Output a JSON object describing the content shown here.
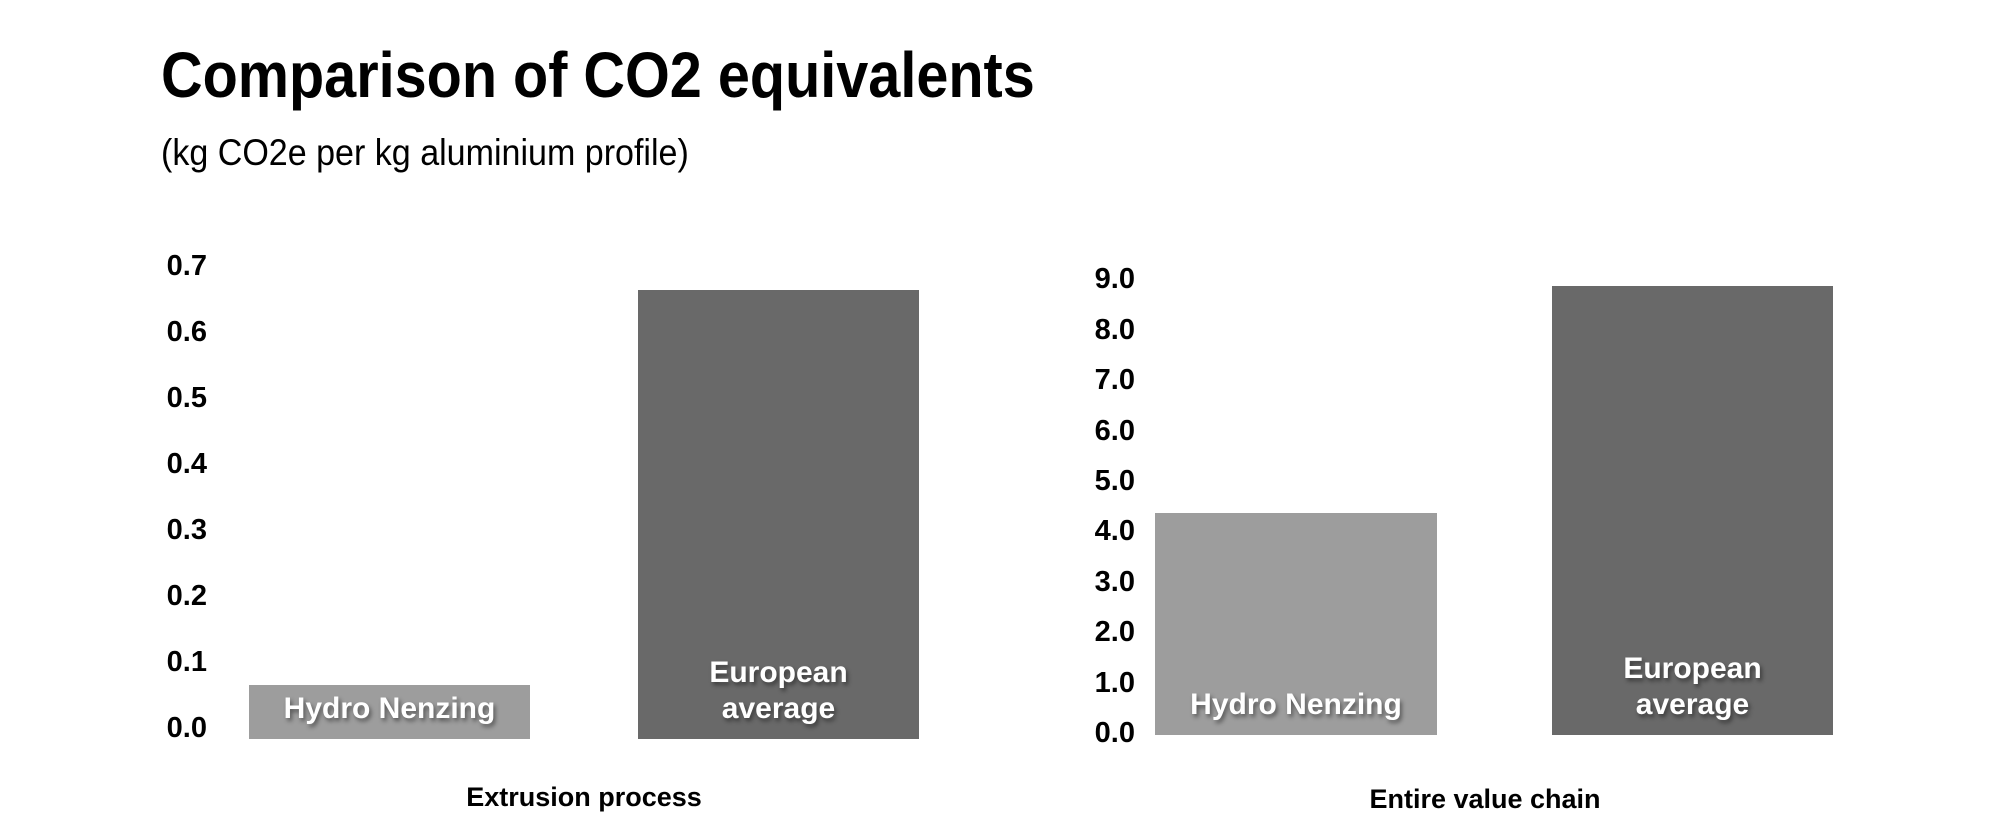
{
  "header": {
    "title": "Comparison of CO2 equivalents",
    "subtitle": "(kg CO2e per kg aluminium profile)"
  },
  "colors": {
    "background": "#ffffff",
    "text": "#000000",
    "hydro_bar": "#9d9d9d",
    "european_bar": "#696969",
    "bar_label_text": "#ffffff"
  },
  "chart_data": [
    {
      "type": "bar",
      "title": "Extrusion process",
      "xlabel": "Extrusion process",
      "ylabel": "",
      "categories": [
        "Hydro Nenzing",
        "European average"
      ],
      "values": [
        0.08,
        0.66
      ],
      "ylim": [
        0.0,
        0.7
      ],
      "yticks": [
        "0.0",
        "0.1",
        "0.2",
        "0.3",
        "0.4",
        "0.5",
        "0.6",
        "0.7"
      ],
      "bar_colors": [
        "#9d9d9d",
        "#696969"
      ],
      "bar_label_color": "#ffffff",
      "grid": false,
      "legend": false,
      "axis_lines": false,
      "bar_labels_inside": true
    },
    {
      "type": "bar",
      "title": "Entire value chain",
      "xlabel": "Entire value chain",
      "ylabel": "",
      "categories": [
        "Hydro Nenzing",
        "European average"
      ],
      "values": [
        4.4,
        8.9
      ],
      "ylim": [
        0.0,
        9.0
      ],
      "yticks": [
        "0.0",
        "1.0",
        "2.0",
        "3.0",
        "4.0",
        "5.0",
        "6.0",
        "7.0",
        "8.0",
        "9.0"
      ],
      "bar_colors": [
        "#9d9d9d",
        "#696969"
      ],
      "bar_label_color": "#ffffff",
      "grid": false,
      "legend": false,
      "axis_lines": false,
      "bar_labels_inside": true
    }
  ]
}
